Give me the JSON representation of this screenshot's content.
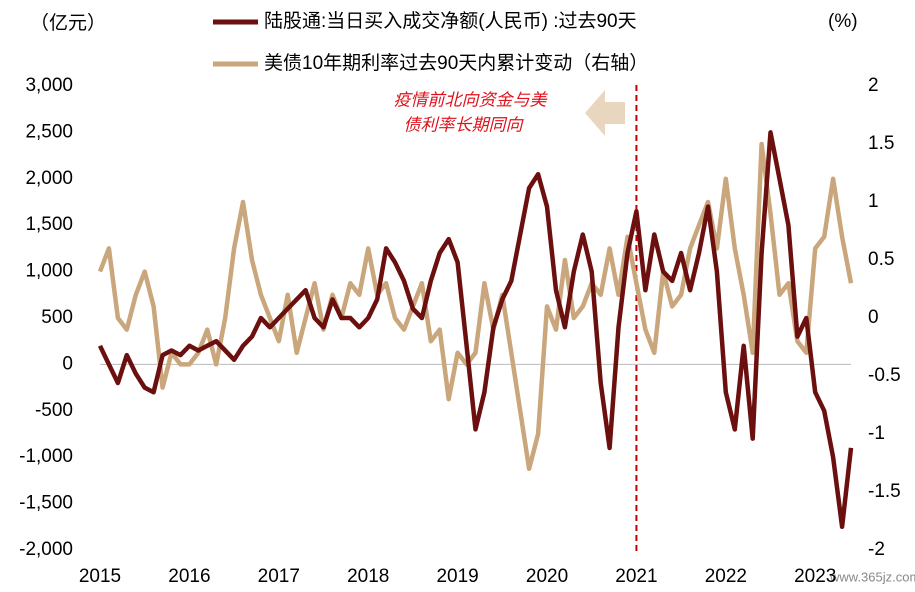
{
  "chart_data": {
    "type": "line",
    "y_label": "（亿元）",
    "y2_label": "(%)",
    "annotation": [
      "疫情前北向资金与美",
      "债利率长期同向"
    ],
    "watermark": "www.365jz.com",
    "vline": 2021,
    "xlim": [
      2015,
      2023.4
    ],
    "xticks": [
      2015,
      2016,
      2017,
      2018,
      2019,
      2020,
      2021,
      2022,
      2023
    ],
    "ylim": [
      -2000,
      3000
    ],
    "yticks": [
      {
        "value": -2000,
        "label": "-2,000"
      },
      {
        "value": -1500,
        "label": "-1,500"
      },
      {
        "value": -1000,
        "label": "-1,000"
      },
      -500,
      0,
      500,
      {
        "value": 1000,
        "label": "1,000"
      },
      {
        "value": 1500,
        "label": "1,500"
      },
      {
        "value": 2000,
        "label": "2,000"
      },
      {
        "value": 2500,
        "label": "2,500"
      },
      {
        "value": 3000,
        "label": "3,000"
      }
    ],
    "y2lim": [
      -2,
      2
    ],
    "y2ticks": [
      -2,
      -1.5,
      -1,
      -0.5,
      0,
      0.5,
      1,
      1.5,
      2
    ],
    "x": [
      2015.0,
      2015.1,
      2015.2,
      2015.3,
      2015.4,
      2015.5,
      2015.6,
      2015.7,
      2015.8,
      2015.9,
      2016.0,
      2016.1,
      2016.2,
      2016.3,
      2016.4,
      2016.5,
      2016.6,
      2016.7,
      2016.8,
      2016.9,
      2017.0,
      2017.1,
      2017.2,
      2017.3,
      2017.4,
      2017.5,
      2017.6,
      2017.7,
      2017.8,
      2017.9,
      2018.0,
      2018.1,
      2018.2,
      2018.3,
      2018.4,
      2018.5,
      2018.6,
      2018.7,
      2018.8,
      2018.9,
      2019.0,
      2019.1,
      2019.2,
      2019.3,
      2019.4,
      2019.5,
      2019.6,
      2019.7,
      2019.8,
      2019.9,
      2020.0,
      2020.1,
      2020.2,
      2020.3,
      2020.4,
      2020.5,
      2020.6,
      2020.7,
      2020.8,
      2020.9,
      2021.0,
      2021.1,
      2021.2,
      2021.3,
      2021.4,
      2021.5,
      2021.6,
      2021.7,
      2021.8,
      2021.9,
      2022.0,
      2022.1,
      2022.2,
      2022.3,
      2022.4,
      2022.5,
      2022.6,
      2022.7,
      2022.8,
      2022.9,
      2023.0,
      2023.1,
      2023.2,
      2023.3,
      2023.4
    ],
    "series": [
      {
        "name": "陆股通:当日买入成交净额(人民币) :过去90天",
        "color": "#6b0f0f",
        "values": [
          200,
          0,
          -200,
          100,
          -100,
          -250,
          -300,
          100,
          150,
          100,
          200,
          150,
          200,
          250,
          150,
          50,
          200,
          300,
          500,
          400,
          500,
          600,
          700,
          800,
          500,
          400,
          700,
          500,
          500,
          400,
          500,
          700,
          1250,
          1100,
          900,
          600,
          500,
          900,
          1200,
          1350,
          1100,
          200,
          -700,
          -300,
          400,
          700,
          900,
          1400,
          1900,
          2050,
          1700,
          800,
          400,
          1000,
          1400,
          1000,
          -200,
          -900,
          400,
          1200,
          1650,
          800,
          1400,
          1000,
          900,
          1200,
          800,
          1200,
          1700,
          1000,
          -300,
          -700,
          200,
          -800,
          1200,
          2500,
          2000,
          1500,
          300,
          500,
          -300,
          -500,
          -1000,
          -1750,
          -900
        ]
      },
      {
        "name": "美债10年期利率过去90天内累计变动（右轴）",
        "color": "#c9a67c",
        "axis": "y2",
        "values": [
          0.4,
          0.6,
          0,
          -0.1,
          0.2,
          0.4,
          0.1,
          -0.6,
          -0.3,
          -0.4,
          -0.4,
          -0.3,
          -0.1,
          -0.4,
          0,
          0.6,
          1.0,
          0.5,
          0.2,
          0,
          -0.2,
          0.2,
          -0.3,
          0,
          0.3,
          -0.1,
          0.2,
          0,
          0.3,
          0.2,
          0.6,
          0.2,
          0.3,
          0,
          -0.1,
          0.1,
          0.3,
          -0.2,
          -0.1,
          -0.7,
          -0.3,
          -0.4,
          -0.3,
          0.3,
          -0.1,
          0.2,
          -0.3,
          -0.8,
          -1.3,
          -1.0,
          0.1,
          -0.1,
          0.5,
          0,
          0.1,
          0.3,
          0.2,
          0.6,
          0.2,
          0.7,
          0.3,
          -0.1,
          -0.3,
          0.4,
          0.1,
          0.2,
          0.6,
          0.8,
          1.0,
          0.6,
          1.2,
          0.6,
          0.2,
          -0.3,
          1.5,
          0.9,
          0.2,
          0.3,
          -0.2,
          -0.3,
          0.6,
          0.7,
          1.2,
          0.7,
          0.3
        ]
      }
    ]
  }
}
